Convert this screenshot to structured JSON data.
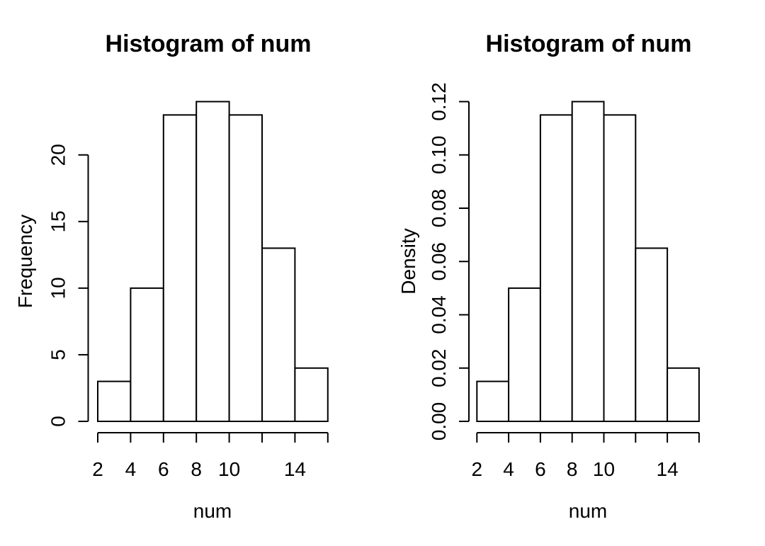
{
  "figure": {
    "background": "#ffffff",
    "line_color": "#000000",
    "bar_fill": "#ffffff",
    "bar_stroke": "#000000"
  },
  "chart_data": [
    {
      "type": "bar",
      "subtype": "histogram",
      "title": "Histogram of num",
      "xlabel": "num",
      "ylabel": "Frequency",
      "bin_edges": [
        2,
        4,
        6,
        8,
        10,
        12,
        14,
        16
      ],
      "values": [
        3,
        10,
        23,
        24,
        23,
        13,
        4
      ],
      "xlim": [
        2,
        16
      ],
      "ylim": [
        0,
        24
      ],
      "x_ticks": [
        2,
        4,
        6,
        8,
        10,
        12,
        14,
        16
      ],
      "x_tick_labels": [
        "2",
        "4",
        "6",
        "8",
        "10",
        "",
        "14",
        ""
      ],
      "y_ticks": [
        0,
        5,
        10,
        15,
        20
      ],
      "y_tick_labels": [
        "0",
        "5",
        "10",
        "15",
        "20"
      ],
      "grid": false,
      "legend": false
    },
    {
      "type": "bar",
      "subtype": "histogram",
      "title": "Histogram of num",
      "xlabel": "num",
      "ylabel": "Density",
      "bin_edges": [
        2,
        4,
        6,
        8,
        10,
        12,
        14,
        16
      ],
      "values": [
        0.015,
        0.05,
        0.115,
        0.12,
        0.115,
        0.065,
        0.02
      ],
      "xlim": [
        2,
        16
      ],
      "ylim": [
        0,
        0.12
      ],
      "x_ticks": [
        2,
        4,
        6,
        8,
        10,
        12,
        14,
        16
      ],
      "x_tick_labels": [
        "2",
        "4",
        "6",
        "8",
        "10",
        "",
        "14",
        ""
      ],
      "y_ticks": [
        0,
        0.02,
        0.04,
        0.06,
        0.08,
        0.1,
        0.12
      ],
      "y_tick_labels": [
        "0.00",
        "0.02",
        "0.04",
        "0.06",
        "0.08",
        "0.10",
        "0.12"
      ],
      "grid": false,
      "legend": false
    }
  ]
}
